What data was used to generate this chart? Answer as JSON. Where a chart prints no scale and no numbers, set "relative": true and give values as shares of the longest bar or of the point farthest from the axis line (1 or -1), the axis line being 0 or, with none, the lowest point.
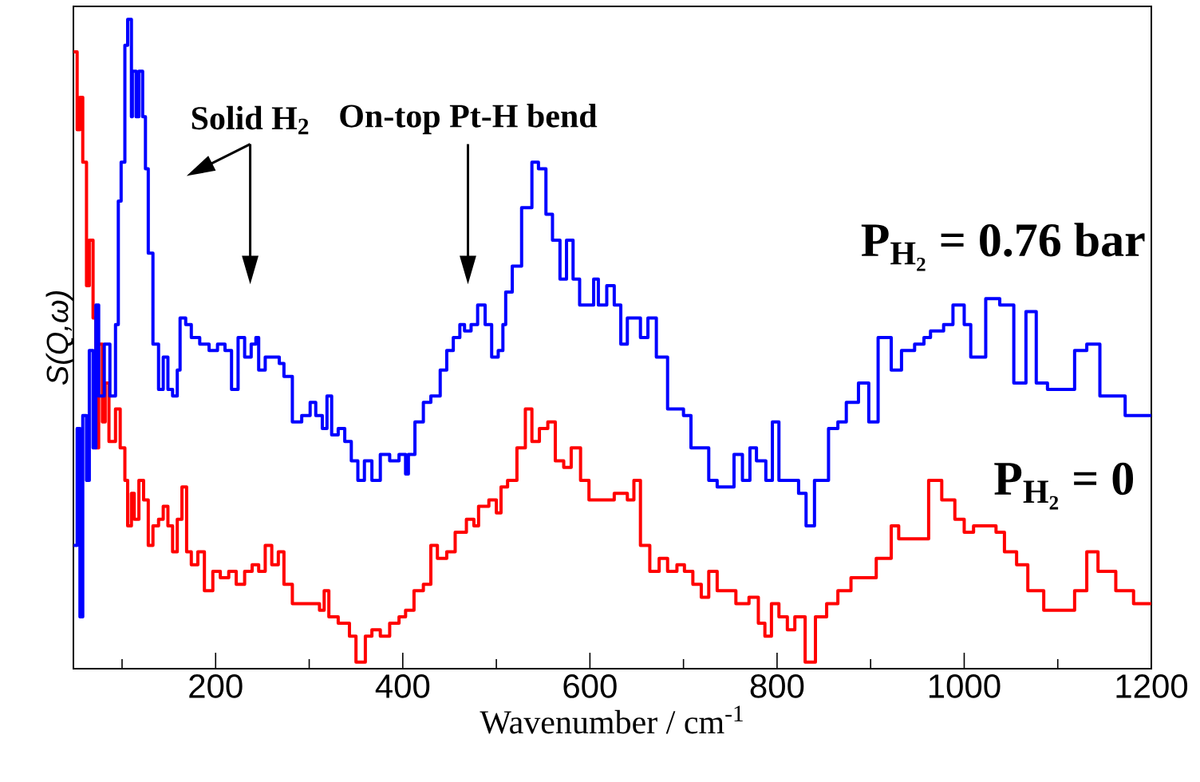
{
  "chart_data": {
    "type": "step",
    "relative": true,
    "xlabel": "Wavenumber / cm$^{-1}$",
    "ylabel": "S(Q,ω)",
    "xlim": [
      48,
      1200
    ],
    "xticks": [
      {
        "value": 100,
        "label": null
      },
      200,
      {
        "value": 300,
        "label": null
      },
      400,
      {
        "value": 500,
        "label": null
      },
      600,
      {
        "value": 700,
        "label": null
      },
      800,
      {
        "value": 900,
        "label": null
      },
      1000,
      {
        "value": 1100,
        "label": null
      },
      1200
    ],
    "legend": false,
    "marker": "none",
    "line_style": "solid",
    "annotations": [
      "Solid H$_{2}$",
      "On-top Pt-H bend"
    ],
    "series": [
      {
        "name": "P$_{H₂}$ = 0.76 bar",
        "color": "#0000ff",
        "x": [
          48,
          52,
          55,
          58,
          62,
          65,
          69,
          72,
          75,
          81,
          87,
          93,
          96,
          99,
          103,
          106,
          110,
          111,
          115,
          118,
          122,
          125,
          128,
          133,
          139,
          144,
          149,
          154,
          159,
          162,
          168,
          174,
          183,
          193,
          202,
          210,
          217,
          224,
          231,
          238,
          243,
          246,
          253,
          260,
          268,
          273,
          282,
          292,
          301,
          307,
          314,
          319,
          324,
          331,
          338,
          345,
          352,
          359,
          367,
          376,
          386,
          396,
          403,
          406,
          413,
          422,
          430,
          440,
          447,
          454,
          461,
          466,
          473,
          480,
          488,
          495,
          502,
          507,
          510,
          517,
          527,
          538,
          545,
          553,
          560,
          568,
          575,
          582,
          589,
          597,
          604,
          609,
          618,
          626,
          633,
          640,
          647,
          654,
          662,
          671,
          683,
          693,
          700,
          708,
          717,
          727,
          736,
          754,
          763,
          771,
          778,
          788,
          795,
          802,
          823,
          831,
          840,
          855,
          865,
          874,
          887,
          898,
          908,
          922,
          933,
          947,
          957,
          964,
          978,
          988,
          1000,
          1007,
          1023,
          1038,
          1044,
          1053,
          1066,
          1077,
          1089,
          1100,
          1118,
          1131,
          1145,
          1160,
          1172,
          1200
        ],
        "values": [
          0.19,
          0.37,
          0.08,
          0.39,
          0.29,
          0.49,
          0.34,
          0.56,
          0.42,
          0.5,
          0.42,
          0.53,
          0.72,
          0.78,
          0.96,
          1.0,
          0.85,
          0.92,
          0.85,
          0.92,
          0.85,
          0.77,
          0.64,
          0.5,
          0.43,
          0.48,
          0.43,
          0.42,
          0.46,
          0.54,
          0.53,
          0.51,
          0.5,
          0.49,
          0.5,
          0.49,
          0.43,
          0.51,
          0.48,
          0.5,
          0.51,
          0.46,
          0.48,
          0.48,
          0.47,
          0.45,
          0.38,
          0.39,
          0.41,
          0.39,
          0.37,
          0.42,
          0.36,
          0.37,
          0.35,
          0.32,
          0.29,
          0.32,
          0.29,
          0.33,
          0.32,
          0.33,
          0.3,
          0.33,
          0.38,
          0.41,
          0.42,
          0.46,
          0.49,
          0.51,
          0.53,
          0.52,
          0.53,
          0.56,
          0.53,
          0.48,
          0.49,
          0.53,
          0.58,
          0.62,
          0.71,
          0.78,
          0.77,
          0.7,
          0.66,
          0.6,
          0.66,
          0.6,
          0.56,
          0.56,
          0.6,
          0.56,
          0.59,
          0.56,
          0.5,
          0.54,
          0.54,
          0.51,
          0.54,
          0.48,
          0.4,
          0.4,
          0.39,
          0.34,
          0.34,
          0.29,
          0.28,
          0.33,
          0.29,
          0.34,
          0.32,
          0.29,
          0.38,
          0.29,
          0.27,
          0.22,
          0.29,
          0.37,
          0.38,
          0.41,
          0.44,
          0.38,
          0.51,
          0.46,
          0.49,
          0.5,
          0.51,
          0.52,
          0.53,
          0.56,
          0.53,
          0.48,
          0.57,
          0.56,
          0.56,
          0.44,
          0.55,
          0.44,
          0.43,
          0.43,
          0.49,
          0.5,
          0.42,
          0.42,
          0.39,
          0.39
        ]
      },
      {
        "name": "P$_{H₂}$ = 0",
        "color": "#ff0000",
        "x": [
          48,
          52,
          55,
          58,
          62,
          65,
          69,
          72,
          75,
          79,
          82,
          86,
          93,
          98,
          103,
          106,
          110,
          113,
          118,
          123,
          128,
          133,
          139,
          144,
          149,
          154,
          159,
          164,
          169,
          174,
          181,
          188,
          197,
          205,
          214,
          222,
          231,
          239,
          246,
          253,
          260,
          267,
          273,
          282,
          294,
          304,
          311,
          316,
          321,
          331,
          343,
          350,
          360,
          367,
          376,
          386,
          396,
          403,
          412,
          422,
          430,
          437,
          447,
          456,
          468,
          476,
          481,
          492,
          500,
          505,
          512,
          522,
          531,
          538,
          546,
          555,
          563,
          572,
          580,
          590,
          599,
          614,
          626,
          640,
          647,
          654,
          664,
          674,
          683,
          693,
          701,
          710,
          719,
          727,
          736,
          746,
          756,
          770,
          780,
          787,
          794,
          802,
          811,
          819,
          830,
          841,
          853,
          865,
          879,
          891,
          906,
          922,
          930,
          947,
          962,
          976,
          990,
          1000,
          1010,
          1024,
          1034,
          1043,
          1056,
          1068,
          1085,
          1099,
          1118,
          1131,
          1143,
          1162,
          1181,
          1200
        ],
        "values": [
          0.95,
          0.83,
          0.88,
          0.78,
          0.59,
          0.66,
          0.54,
          0.34,
          0.5,
          0.38,
          0.44,
          0.35,
          0.4,
          0.34,
          0.29,
          0.22,
          0.27,
          0.23,
          0.29,
          0.26,
          0.19,
          0.22,
          0.23,
          0.25,
          0.22,
          0.18,
          0.23,
          0.28,
          0.18,
          0.16,
          0.18,
          0.12,
          0.15,
          0.14,
          0.15,
          0.13,
          0.15,
          0.16,
          0.15,
          0.19,
          0.16,
          0.18,
          0.13,
          0.1,
          0.1,
          0.1,
          0.09,
          0.12,
          0.08,
          0.07,
          0.05,
          0.01,
          0.05,
          0.06,
          0.05,
          0.07,
          0.08,
          0.09,
          0.12,
          0.13,
          0.19,
          0.17,
          0.18,
          0.21,
          0.23,
          0.22,
          0.25,
          0.26,
          0.24,
          0.28,
          0.29,
          0.34,
          0.4,
          0.35,
          0.37,
          0.38,
          0.32,
          0.31,
          0.34,
          0.29,
          0.26,
          0.26,
          0.27,
          0.26,
          0.29,
          0.19,
          0.15,
          0.17,
          0.15,
          0.16,
          0.15,
          0.13,
          0.11,
          0.15,
          0.12,
          0.12,
          0.1,
          0.11,
          0.07,
          0.05,
          0.1,
          0.08,
          0.06,
          0.08,
          0.01,
          0.08,
          0.1,
          0.12,
          0.14,
          0.14,
          0.17,
          0.22,
          0.2,
          0.2,
          0.29,
          0.26,
          0.23,
          0.21,
          0.22,
          0.22,
          0.21,
          0.18,
          0.16,
          0.12,
          0.09,
          0.09,
          0.12,
          0.18,
          0.15,
          0.12,
          0.1,
          0.1
        ]
      }
    ]
  }
}
